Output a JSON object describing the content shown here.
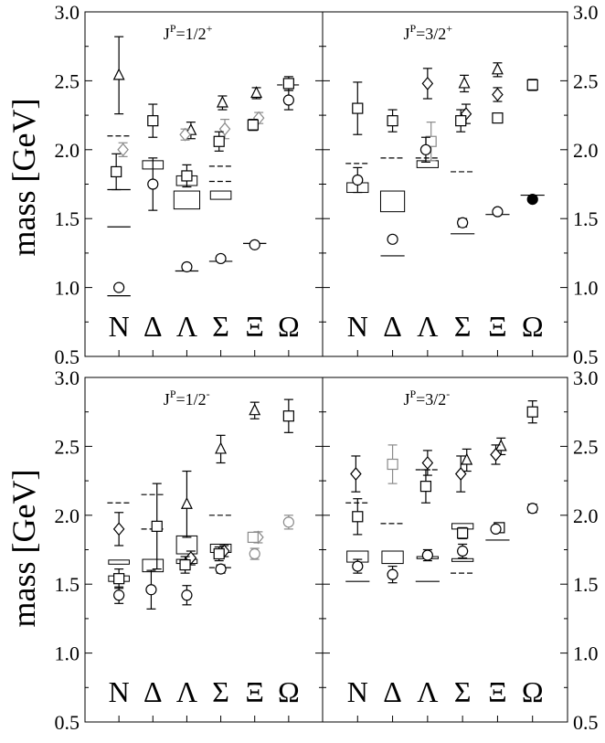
{
  "figure": {
    "ylabel": "mass [GeV]",
    "yticks": [
      "0.5",
      "1.0",
      "1.5",
      "2.0",
      "2.5",
      "3.0"
    ],
    "categories": [
      "N",
      "Δ",
      "Λ",
      "Σ",
      "Ξ",
      "Ω"
    ]
  },
  "chart_data": [
    {
      "type": "scatter",
      "title": "J^P=1/2^+",
      "title_parts": {
        "j": "J",
        "p": "P",
        "rest": "=1/2",
        "sup": "+"
      },
      "categories": [
        "N",
        "Δ",
        "Λ",
        "Σ",
        "Ξ",
        "Ω"
      ],
      "ylabel": "mass [GeV]",
      "ylim": [
        0.5,
        3.0
      ],
      "expt_boxes": [
        {
          "cat": "Δ",
          "y0": 1.86,
          "y1": 1.92,
          "w": 0.8
        },
        {
          "cat": "Λ",
          "y0": 1.74,
          "y1": 1.81,
          "w": 0.8
        },
        {
          "cat": "Λ",
          "y0": 1.57,
          "y1": 1.7,
          "w": 1.0
        },
        {
          "cat": "Σ",
          "y0": 1.64,
          "y1": 1.7,
          "w": 0.8
        }
      ],
      "dashes": [
        {
          "cat": "N",
          "y": 2.1,
          "style": "dashed"
        },
        {
          "cat": "N",
          "y": 1.71,
          "style": "solid"
        },
        {
          "cat": "N",
          "y": 1.44,
          "style": "solid"
        },
        {
          "cat": "N",
          "y": 0.94,
          "style": "solid"
        },
        {
          "cat": "Λ",
          "y": 1.12,
          "style": "solid"
        },
        {
          "cat": "Σ",
          "y": 1.88,
          "style": "dashed"
        },
        {
          "cat": "Σ",
          "y": 1.77,
          "style": "dashed"
        },
        {
          "cat": "Σ",
          "y": 1.19,
          "style": "solid"
        },
        {
          "cat": "Ξ",
          "y": 1.32,
          "style": "solid"
        },
        {
          "cat": "Ω",
          "y": 2.47,
          "style": "dashed"
        }
      ],
      "points": [
        {
          "cat": "N",
          "dx": 0.0,
          "y": 2.54,
          "err": 0.28,
          "m": "triangle",
          "c": "black"
        },
        {
          "cat": "N",
          "dx": 0.12,
          "y": 2.0,
          "err": 0.05,
          "m": "diamond",
          "c": "gray"
        },
        {
          "cat": "N",
          "dx": -0.08,
          "y": 1.84,
          "err": 0.13,
          "m": "square",
          "c": "black"
        },
        {
          "cat": "N",
          "dx": 0.0,
          "y": 1.0,
          "err": 0.02,
          "m": "circle",
          "c": "black"
        },
        {
          "cat": "Δ",
          "dx": 0.0,
          "y": 2.21,
          "err": 0.12,
          "m": "square",
          "c": "black"
        },
        {
          "cat": "Δ",
          "dx": 0.0,
          "y": 1.75,
          "err": 0.19,
          "m": "circle",
          "c": "black"
        },
        {
          "cat": "Λ",
          "dx": 0.12,
          "y": 2.14,
          "err": 0.06,
          "m": "triangle",
          "c": "black"
        },
        {
          "cat": "Λ",
          "dx": -0.05,
          "y": 2.11,
          "err": 0.04,
          "m": "diamond",
          "c": "gray"
        },
        {
          "cat": "Λ",
          "dx": 0.0,
          "y": 1.81,
          "err": 0.08,
          "m": "square",
          "c": "black"
        },
        {
          "cat": "Λ",
          "dx": 0.0,
          "y": 1.15,
          "err": 0.02,
          "m": "circle",
          "c": "black"
        },
        {
          "cat": "Σ",
          "dx": 0.05,
          "y": 2.34,
          "err": 0.05,
          "m": "triangle",
          "c": "black"
        },
        {
          "cat": "Σ",
          "dx": 0.12,
          "y": 2.15,
          "err": 0.07,
          "m": "diamond",
          "c": "gray"
        },
        {
          "cat": "Σ",
          "dx": -0.05,
          "y": 2.06,
          "err": 0.07,
          "m": "square",
          "c": "black"
        },
        {
          "cat": "Σ",
          "dx": 0.0,
          "y": 1.21,
          "err": 0.02,
          "m": "circle",
          "c": "black"
        },
        {
          "cat": "Ξ",
          "dx": 0.05,
          "y": 2.41,
          "err": 0.04,
          "m": "triangle",
          "c": "black"
        },
        {
          "cat": "Ξ",
          "dx": 0.12,
          "y": 2.23,
          "err": 0.04,
          "m": "diamond",
          "c": "gray"
        },
        {
          "cat": "Ξ",
          "dx": -0.05,
          "y": 2.18,
          "err": 0.04,
          "m": "square",
          "c": "black"
        },
        {
          "cat": "Ξ",
          "dx": 0.0,
          "y": 1.31,
          "err": 0.01,
          "m": "circle",
          "c": "black"
        },
        {
          "cat": "Ω",
          "dx": 0.0,
          "y": 2.48,
          "err": 0.05,
          "m": "square",
          "c": "black"
        },
        {
          "cat": "Ω",
          "dx": 0.0,
          "y": 2.36,
          "err": 0.07,
          "m": "circle",
          "c": "black"
        }
      ]
    },
    {
      "type": "scatter",
      "title": "J^P=3/2^+",
      "title_parts": {
        "j": "J",
        "p": "P",
        "rest": "=3/2",
        "sup": "+"
      },
      "categories": [
        "N",
        "Δ",
        "Λ",
        "Σ",
        "Ξ",
        "Ω"
      ],
      "ylabel": "mass [GeV]",
      "ylim": [
        0.5,
        3.0
      ],
      "expt_boxes": [
        {
          "cat": "N",
          "y0": 1.69,
          "y1": 1.76,
          "w": 0.8
        },
        {
          "cat": "Δ",
          "y0": 1.55,
          "y1": 1.7,
          "w": 0.9
        },
        {
          "cat": "Λ",
          "y0": 1.87,
          "y1": 1.92,
          "w": 0.8
        }
      ],
      "dashes": [
        {
          "cat": "N",
          "y": 1.9,
          "style": "dashed"
        },
        {
          "cat": "Δ",
          "y": 1.94,
          "style": "dashed"
        },
        {
          "cat": "Δ",
          "y": 1.23,
          "style": "solid"
        },
        {
          "cat": "Λ",
          "y": 1.94,
          "style": "dashed"
        },
        {
          "cat": "Σ",
          "y": 1.84,
          "style": "dashed"
        },
        {
          "cat": "Σ",
          "y": 1.39,
          "style": "solid"
        },
        {
          "cat": "Ξ",
          "y": 1.53,
          "style": "solid"
        },
        {
          "cat": "Ω",
          "y": 1.67,
          "style": "solid"
        }
      ],
      "points": [
        {
          "cat": "N",
          "dx": 0.0,
          "y": 2.3,
          "err": 0.19,
          "m": "square",
          "c": "black"
        },
        {
          "cat": "N",
          "dx": 0.0,
          "y": 1.78,
          "err": 0.09,
          "m": "circle",
          "c": "black"
        },
        {
          "cat": "Δ",
          "dx": 0.0,
          "y": 2.21,
          "err": 0.08,
          "m": "square",
          "c": "black"
        },
        {
          "cat": "Δ",
          "dx": 0.0,
          "y": 1.35,
          "err": 0.02,
          "m": "circle",
          "c": "black"
        },
        {
          "cat": "Λ",
          "dx": 0.0,
          "y": 2.48,
          "err": 0.11,
          "m": "diamond",
          "c": "black"
        },
        {
          "cat": "Λ",
          "dx": 0.1,
          "y": 2.06,
          "err": 0.14,
          "m": "square",
          "c": "gray"
        },
        {
          "cat": "Λ",
          "dx": -0.05,
          "y": 2.0,
          "err": 0.09,
          "m": "circle",
          "c": "black"
        },
        {
          "cat": "Σ",
          "dx": 0.05,
          "y": 2.48,
          "err": 0.06,
          "m": "triangle",
          "c": "black"
        },
        {
          "cat": "Σ",
          "dx": 0.1,
          "y": 2.26,
          "err": 0.07,
          "m": "diamond",
          "c": "black"
        },
        {
          "cat": "Σ",
          "dx": -0.05,
          "y": 2.21,
          "err": 0.08,
          "m": "square",
          "c": "black"
        },
        {
          "cat": "Σ",
          "dx": 0.0,
          "y": 1.47,
          "err": 0.03,
          "m": "circle",
          "c": "black"
        },
        {
          "cat": "Ξ",
          "dx": 0.0,
          "y": 2.58,
          "err": 0.05,
          "m": "triangle",
          "c": "black"
        },
        {
          "cat": "Ξ",
          "dx": 0.0,
          "y": 2.4,
          "err": 0.05,
          "m": "diamond",
          "c": "black"
        },
        {
          "cat": "Ξ",
          "dx": 0.0,
          "y": 2.23,
          "err": 0.03,
          "m": "square",
          "c": "black"
        },
        {
          "cat": "Ξ",
          "dx": 0.0,
          "y": 1.55,
          "err": 0.01,
          "m": "circle",
          "c": "black"
        },
        {
          "cat": "Ω",
          "dx": 0.0,
          "y": 2.47,
          "err": 0.04,
          "m": "square",
          "c": "black"
        },
        {
          "cat": "Ω",
          "dx": 0.0,
          "y": 1.64,
          "err": 0.0,
          "m": "filled-circle",
          "c": "black"
        }
      ]
    },
    {
      "type": "scatter",
      "title": "J^P=1/2^-",
      "title_parts": {
        "j": "J",
        "p": "P",
        "rest": "=1/2",
        "sup": "-"
      },
      "categories": [
        "N",
        "Δ",
        "Λ",
        "Σ",
        "Ξ",
        "Ω"
      ],
      "ylabel": "mass [GeV]",
      "ylim": [
        0.5,
        3.0
      ],
      "expt_boxes": [
        {
          "cat": "N",
          "y0": 1.645,
          "y1": 1.675,
          "w": 0.8
        },
        {
          "cat": "N",
          "y0": 1.52,
          "y1": 1.56,
          "w": 0.8
        },
        {
          "cat": "Δ",
          "y0": 1.59,
          "y1": 1.68,
          "w": 0.8
        },
        {
          "cat": "Λ",
          "y0": 1.72,
          "y1": 1.85,
          "w": 0.8
        },
        {
          "cat": "Λ",
          "y0": 1.65,
          "y1": 1.68,
          "w": 0.8
        },
        {
          "cat": "Σ",
          "y0": 1.73,
          "y1": 1.79,
          "w": 0.8
        }
      ],
      "dashes": [
        {
          "cat": "N",
          "y": 2.09,
          "style": "dashed"
        },
        {
          "cat": "Δ",
          "y": 2.15,
          "style": "dashed"
        },
        {
          "cat": "Δ",
          "y": 1.9,
          "style": "dashed"
        },
        {
          "cat": "Σ",
          "y": 2.0,
          "style": "dashed"
        },
        {
          "cat": "Σ",
          "y": 1.62,
          "style": "dashed"
        }
      ],
      "points": [
        {
          "cat": "N",
          "dx": 0.0,
          "y": 1.9,
          "err": 0.12,
          "m": "diamond",
          "c": "black"
        },
        {
          "cat": "N",
          "dx": 0.0,
          "y": 1.54,
          "err": 0.07,
          "m": "square",
          "c": "black"
        },
        {
          "cat": "N",
          "dx": 0.0,
          "y": 1.42,
          "err": 0.06,
          "m": "circle",
          "c": "black"
        },
        {
          "cat": "Δ",
          "dx": 0.12,
          "y": 1.92,
          "err": 0.31,
          "m": "square",
          "c": "black"
        },
        {
          "cat": "Δ",
          "dx": -0.05,
          "y": 1.46,
          "err": 0.14,
          "m": "circle",
          "c": "black"
        },
        {
          "cat": "Λ",
          "dx": 0.0,
          "y": 2.08,
          "err": 0.24,
          "m": "triangle",
          "c": "black"
        },
        {
          "cat": "Λ",
          "dx": 0.12,
          "y": 1.69,
          "err": 0.05,
          "m": "diamond",
          "c": "black"
        },
        {
          "cat": "Λ",
          "dx": -0.05,
          "y": 1.64,
          "err": 0.06,
          "m": "square",
          "c": "black"
        },
        {
          "cat": "Λ",
          "dx": 0.0,
          "y": 1.42,
          "err": 0.07,
          "m": "circle",
          "c": "black"
        },
        {
          "cat": "Σ",
          "dx": 0.0,
          "y": 2.48,
          "err": 0.1,
          "m": "triangle",
          "c": "black"
        },
        {
          "cat": "Σ",
          "dx": 0.1,
          "y": 1.74,
          "err": 0.04,
          "m": "diamond",
          "c": "black"
        },
        {
          "cat": "Σ",
          "dx": -0.05,
          "y": 1.72,
          "err": 0.05,
          "m": "square",
          "c": "black"
        },
        {
          "cat": "Σ",
          "dx": 0.0,
          "y": 1.61,
          "err": 0.03,
          "m": "circle",
          "c": "black"
        },
        {
          "cat": "Ξ",
          "dx": 0.0,
          "y": 2.76,
          "err": 0.06,
          "m": "triangle",
          "c": "black"
        },
        {
          "cat": "Ξ",
          "dx": 0.1,
          "y": 1.84,
          "err": 0.04,
          "m": "diamond",
          "c": "gray"
        },
        {
          "cat": "Ξ",
          "dx": -0.05,
          "y": 1.84,
          "err": 0.03,
          "m": "square",
          "c": "gray"
        },
        {
          "cat": "Ξ",
          "dx": 0.0,
          "y": 1.72,
          "err": 0.04,
          "m": "circle",
          "c": "gray"
        },
        {
          "cat": "Ω",
          "dx": 0.0,
          "y": 2.72,
          "err": 0.12,
          "m": "square",
          "c": "black"
        },
        {
          "cat": "Ω",
          "dx": 0.0,
          "y": 1.95,
          "err": 0.05,
          "m": "circle",
          "c": "gray"
        }
      ]
    },
    {
      "type": "scatter",
      "title": "J^P=3/2^-",
      "title_parts": {
        "j": "J",
        "p": "P",
        "rest": "=3/2",
        "sup": "-"
      },
      "categories": [
        "N",
        "Δ",
        "Λ",
        "Σ",
        "Ξ",
        "Ω"
      ],
      "ylabel": "mass [GeV]",
      "ylim": [
        0.5,
        3.0
      ],
      "expt_boxes": [
        {
          "cat": "N",
          "y0": 1.66,
          "y1": 1.74,
          "w": 0.8
        },
        {
          "cat": "Δ",
          "y0": 1.65,
          "y1": 1.74,
          "w": 0.8
        },
        {
          "cat": "Λ",
          "y0": 1.685,
          "y1": 1.7,
          "w": 0.8
        },
        {
          "cat": "Σ",
          "y0": 1.9,
          "y1": 1.94,
          "w": 0.8
        },
        {
          "cat": "Σ",
          "y0": 1.665,
          "y1": 1.685,
          "w": 0.8
        }
      ],
      "dashes": [
        {
          "cat": "N",
          "y": 2.09,
          "style": "dashed"
        },
        {
          "cat": "N",
          "y": 1.52,
          "style": "solid"
        },
        {
          "cat": "Δ",
          "y": 1.94,
          "style": "dashed"
        },
        {
          "cat": "Λ",
          "y": 2.33,
          "style": "dashed"
        },
        {
          "cat": "Λ",
          "y": 1.52,
          "style": "solid"
        },
        {
          "cat": "Σ",
          "y": 1.58,
          "style": "dashed"
        },
        {
          "cat": "Ξ",
          "y": 1.82,
          "style": "solid"
        }
      ],
      "points": [
        {
          "cat": "N",
          "dx": -0.05,
          "y": 2.3,
          "err": 0.13,
          "m": "diamond",
          "c": "black"
        },
        {
          "cat": "N",
          "dx": 0.0,
          "y": 1.99,
          "err": 0.13,
          "m": "square",
          "c": "black"
        },
        {
          "cat": "N",
          "dx": 0.0,
          "y": 1.63,
          "err": 0.05,
          "m": "circle",
          "c": "black"
        },
        {
          "cat": "Δ",
          "dx": 0.0,
          "y": 2.37,
          "err": 0.14,
          "m": "square",
          "c": "gray"
        },
        {
          "cat": "Δ",
          "dx": 0.0,
          "y": 1.57,
          "err": 0.06,
          "m": "circle",
          "c": "black"
        },
        {
          "cat": "Λ",
          "dx": 0.0,
          "y": 2.38,
          "err": 0.09,
          "m": "diamond",
          "c": "black"
        },
        {
          "cat": "Λ",
          "dx": -0.05,
          "y": 2.21,
          "err": 0.12,
          "m": "square",
          "c": "black"
        },
        {
          "cat": "Λ",
          "dx": 0.0,
          "y": 1.71,
          "err": 0.04,
          "m": "circle",
          "c": "black"
        },
        {
          "cat": "Σ",
          "dx": 0.12,
          "y": 2.4,
          "err": 0.08,
          "m": "triangle",
          "c": "black"
        },
        {
          "cat": "Σ",
          "dx": -0.05,
          "y": 2.3,
          "err": 0.13,
          "m": "diamond",
          "c": "black"
        },
        {
          "cat": "Σ",
          "dx": 0.0,
          "y": 1.87,
          "err": 0.04,
          "m": "square",
          "c": "black"
        },
        {
          "cat": "Σ",
          "dx": 0.0,
          "y": 1.74,
          "err": 0.05,
          "m": "circle",
          "c": "black"
        },
        {
          "cat": "Ξ",
          "dx": 0.1,
          "y": 2.5,
          "err": 0.06,
          "m": "triangle",
          "c": "black"
        },
        {
          "cat": "Ξ",
          "dx": -0.05,
          "y": 2.44,
          "err": 0.07,
          "m": "diamond",
          "c": "black"
        },
        {
          "cat": "Ξ",
          "dx": 0.05,
          "y": 1.91,
          "err": 0.02,
          "m": "square",
          "c": "black"
        },
        {
          "cat": "Ξ",
          "dx": -0.05,
          "y": 1.9,
          "err": 0.02,
          "m": "circle",
          "c": "black"
        },
        {
          "cat": "Ω",
          "dx": 0.0,
          "y": 2.75,
          "err": 0.08,
          "m": "square",
          "c": "black"
        },
        {
          "cat": "Ω",
          "dx": 0.0,
          "y": 2.05,
          "err": 0.03,
          "m": "circle",
          "c": "black"
        }
      ]
    }
  ],
  "colors": {
    "black": "#000000",
    "gray": "#8a8a8a",
    "background": "#ffffff"
  }
}
